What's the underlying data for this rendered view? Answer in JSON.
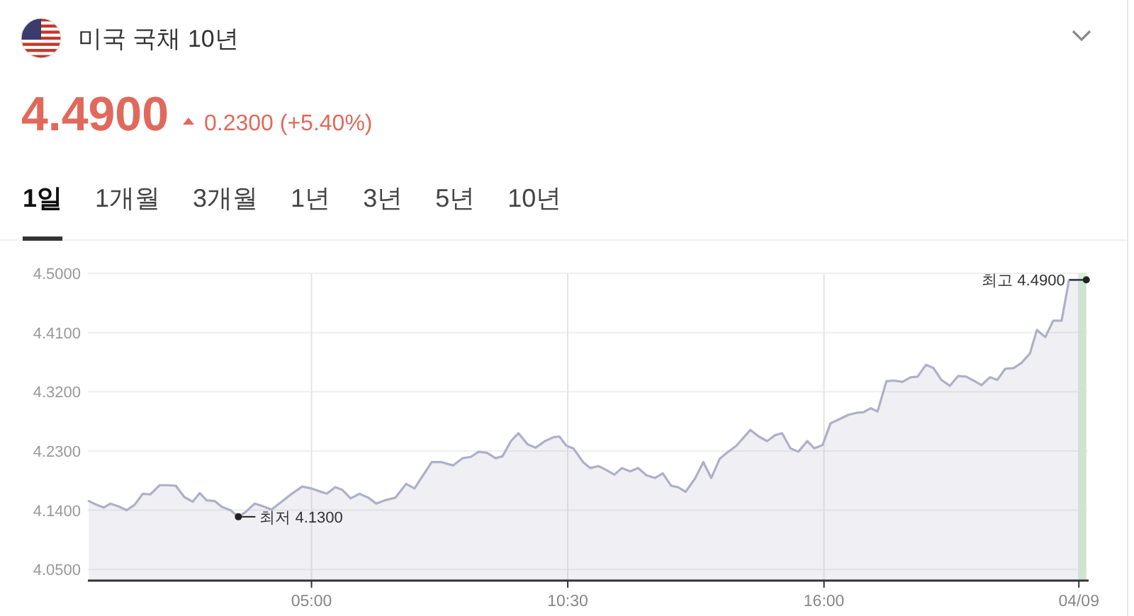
{
  "chart_data": {
    "type": "area",
    "title": "미국 국채 10년",
    "subtitle": "4.4900",
    "annotations": [
      "0.2300 (+5.40%)",
      "1일",
      "1개월",
      "3개월",
      "1년",
      "3년",
      "5년",
      "10년",
      {
        "text": "최저 4.1300",
        "x": 3.43,
        "y": 4.13
      },
      {
        "text": "최고 4.4900",
        "x": 21.63,
        "y": 4.49
      }
    ],
    "x": [
      0.22,
      0.39,
      0.54,
      0.68,
      0.85,
      1.03,
      1.2,
      1.38,
      1.54,
      1.74,
      1.91,
      2.09,
      2.27,
      2.45,
      2.6,
      2.75,
      2.92,
      3.08,
      3.26,
      3.43,
      3.58,
      3.78,
      3.96,
      4.14,
      4.34,
      4.54,
      4.8,
      5.0,
      5.16,
      5.33,
      5.51,
      5.66,
      5.84,
      6.03,
      6.22,
      6.39,
      6.57,
      6.8,
      7.03,
      7.21,
      7.58,
      7.79,
      8.04,
      8.24,
      8.42,
      8.59,
      8.77,
      8.95,
      9.1,
      9.28,
      9.44,
      9.64,
      9.81,
      10.01,
      10.2,
      10.32,
      10.47,
      10.62,
      10.83,
      10.98,
      11.16,
      11.33,
      11.5,
      11.66,
      11.84,
      12.01,
      12.19,
      12.37,
      12.54,
      12.72,
      12.87,
      13.03,
      13.23,
      13.41,
      13.58,
      13.76,
      13.91,
      14.12,
      14.42,
      14.6,
      14.78,
      14.95,
      15.1,
      15.28,
      15.45,
      15.64,
      15.79,
      15.97,
      16.14,
      16.29,
      16.53,
      16.7,
      16.85,
      17.0,
      17.15,
      17.34,
      17.51,
      17.68,
      17.86,
      18.01,
      18.19,
      18.35,
      18.52,
      18.7,
      18.88,
      19.05,
      19.21,
      19.38,
      19.56,
      19.72,
      19.89,
      20.07,
      20.24,
      20.42,
      20.57,
      20.75,
      20.92,
      21.1,
      21.26,
      21.63
    ],
    "series": [
      {
        "color": "#aeb0c8",
        "values": [
          4.154,
          4.148,
          4.144,
          4.15,
          4.146,
          4.14,
          4.148,
          4.165,
          4.164,
          4.178,
          4.178,
          4.177,
          4.16,
          4.153,
          4.166,
          4.155,
          4.154,
          4.145,
          4.14,
          4.13,
          4.137,
          4.15,
          4.146,
          4.141,
          4.152,
          4.163,
          4.176,
          4.173,
          4.169,
          4.165,
          4.175,
          4.171,
          4.158,
          4.165,
          4.159,
          4.15,
          4.155,
          4.159,
          4.18,
          4.173,
          4.213,
          4.213,
          4.208,
          4.219,
          4.221,
          4.229,
          4.227,
          4.219,
          4.222,
          4.245,
          4.257,
          4.24,
          4.235,
          4.245,
          4.251,
          4.252,
          4.238,
          4.234,
          4.213,
          4.204,
          4.207,
          4.201,
          4.194,
          4.204,
          4.199,
          4.204,
          4.193,
          4.189,
          4.196,
          4.177,
          4.175,
          4.168,
          4.188,
          4.213,
          4.189,
          4.218,
          4.227,
          4.238,
          4.262,
          4.252,
          4.245,
          4.254,
          4.257,
          4.234,
          4.229,
          4.245,
          4.234,
          4.239,
          4.272,
          4.277,
          4.285,
          4.288,
          4.289,
          4.295,
          4.29,
          4.336,
          4.337,
          4.335,
          4.342,
          4.343,
          4.361,
          4.356,
          4.338,
          4.329,
          4.344,
          4.343,
          4.337,
          4.33,
          4.342,
          4.338,
          4.355,
          4.356,
          4.364,
          4.378,
          4.414,
          4.403,
          4.428,
          4.428,
          4.49,
          4.49
        ]
      }
    ],
    "xlim": [
      0.2,
      21.65
    ],
    "xticks": [
      {
        "value": 5,
        "label": "05:00"
      },
      {
        "value": 10.5,
        "label": "10:30"
      },
      {
        "value": 16,
        "label": "16:00"
      },
      {
        "value": 21.47,
        "label": "04/09"
      }
    ],
    "ylim": [
      4.033,
      4.5
    ],
    "yticks": [
      {
        "value": 4.05,
        "label": "4.0500"
      },
      {
        "value": 4.14,
        "label": "4.1400"
      },
      {
        "value": 4.23,
        "label": "4.2300"
      },
      {
        "value": 4.32,
        "label": "4.3200"
      },
      {
        "value": 4.41,
        "label": "4.4100"
      },
      {
        "value": 4.5,
        "label": "4.5000"
      }
    ],
    "grid": true,
    "bands": [
      {
        "axis": "x",
        "from": 21.47,
        "to": 21.63,
        "color": "#d6f1d2"
      }
    ]
  }
}
